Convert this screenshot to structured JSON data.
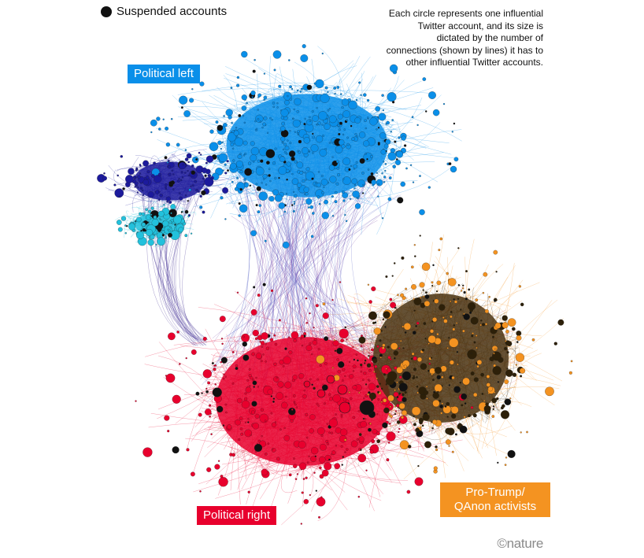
{
  "legend": {
    "suspended_label": "Suspended accounts",
    "suspended_color": "#111111"
  },
  "note": "Each circle represents one influential Twitter account, and its size is dictated by the number of connections (shown by lines) it has to other influential Twitter accounts.",
  "clusters": {
    "political_left": {
      "label": "Political left",
      "color": "#0a8fe9"
    },
    "political_right": {
      "label": "Political right",
      "color": "#e8002d"
    },
    "pro_trump": {
      "label_line1": "Pro-Trump/",
      "label_line2": "QAnon activists",
      "color": "#f49321"
    }
  },
  "subgroup_colors": {
    "navy": "#1c1a9c",
    "cyan": "#22c1dc",
    "dark_brown": "#3a2a0e"
  },
  "credit": "©nature"
}
